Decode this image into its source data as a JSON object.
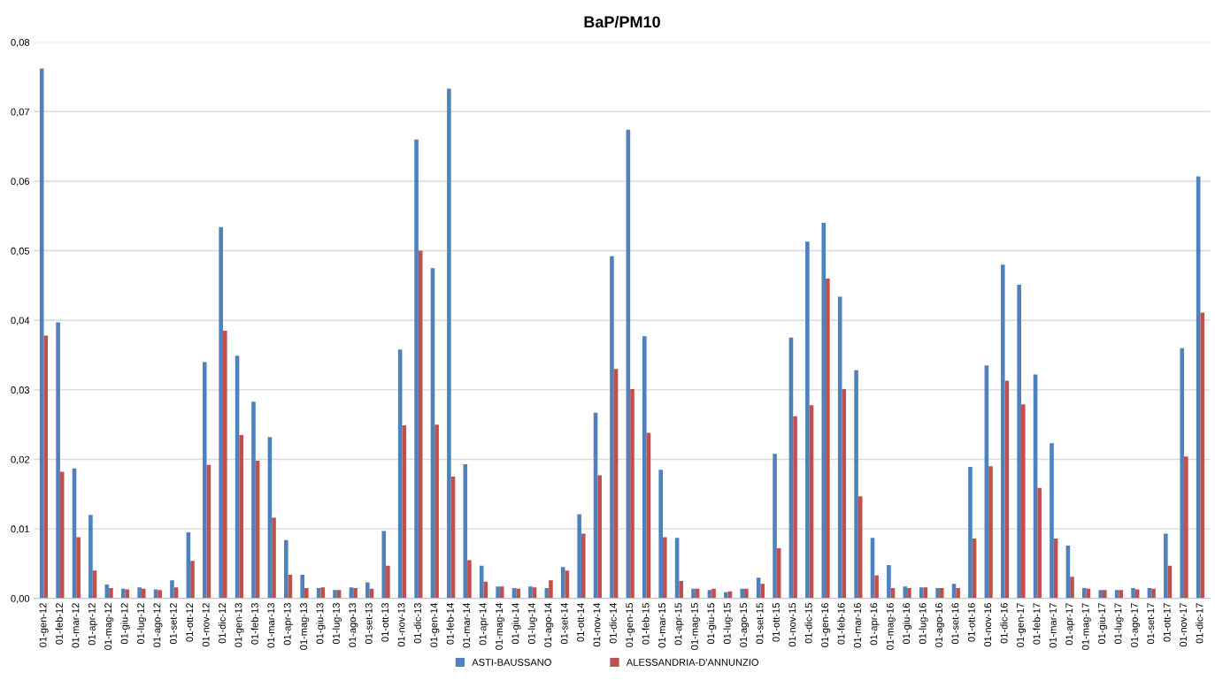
{
  "chart_data": {
    "type": "bar",
    "title": "BaP/PM10",
    "categories": [
      "01-gen-12",
      "01-feb-12",
      "01-mar-12",
      "01-apr-12",
      "01-mag-12",
      "01-giu-12",
      "01-lug-12",
      "01-ago-12",
      "01-set-12",
      "01-ott-12",
      "01-nov-12",
      "01-dic-12",
      "01-gen-13",
      "01-feb-13",
      "01-mar-13",
      "01-apr-13",
      "01-mag-13",
      "01-giu-13",
      "01-lug-13",
      "01-ago-13",
      "01-set-13",
      "01-ott-13",
      "01-nov-13",
      "01-dic-13",
      "01-gen-14",
      "01-feb-14",
      "01-mar-14",
      "01-apr-14",
      "01-mag-14",
      "01-giu-14",
      "01-lug-14",
      "01-ago-14",
      "01-set-14",
      "01-ott-14",
      "01-nov-14",
      "01-dic-14",
      "01-gen-15",
      "01-feb-15",
      "01-mar-15",
      "01-apr-15",
      "01-mag-15",
      "01-giu-15",
      "01-lug-15",
      "01-ago-15",
      "01-set-15",
      "01-ott-15",
      "01-nov-15",
      "01-dic-15",
      "01-gen-16",
      "01-feb-16",
      "01-mar-16",
      "01-apr-16",
      "01-mag-16",
      "01-giu-16",
      "01-lug-16",
      "01-ago-16",
      "01-set-16",
      "01-ott-16",
      "01-nov-16",
      "01-dic-16",
      "01-gen-17",
      "01-feb-17",
      "01-mar-17",
      "01-apr-17",
      "01-mag-17",
      "01-giu-17",
      "01-lug-17",
      "01-ago-17",
      "01-set-17",
      "01-ott-17",
      "01-nov-17",
      "01-dic-17"
    ],
    "series": [
      {
        "name": "ASTI-BAUSSANO",
        "color": "#4f81bd",
        "values": [
          0.0762,
          0.0397,
          0.0187,
          0.012,
          0.002,
          0.0014,
          0.0016,
          0.0013,
          0.0026,
          0.0095,
          0.034,
          0.0534,
          0.0349,
          0.0283,
          0.0232,
          0.0084,
          0.0034,
          0.0015,
          0.0012,
          0.0016,
          0.0023,
          0.0097,
          0.0358,
          0.066,
          0.0475,
          0.0733,
          0.0193,
          0.0047,
          0.0017,
          0.0015,
          0.0017,
          0.0015,
          0.0045,
          0.0121,
          0.0267,
          0.0492,
          0.0674,
          0.0377,
          0.0185,
          0.0087,
          0.0014,
          0.0012,
          0.0009,
          0.0014,
          0.003,
          0.0208,
          0.0375,
          0.0513,
          0.054,
          0.0434,
          0.0328,
          0.0087,
          0.0048,
          0.0017,
          0.0016,
          0.0015,
          0.0021,
          0.0189,
          0.0335,
          0.048,
          0.0451,
          0.0322,
          0.0223,
          0.0076,
          0.0015,
          0.0012,
          0.0012,
          0.0015,
          0.0015,
          0.0093,
          0.036,
          0.0607
        ]
      },
      {
        "name": "ALESSANDRIA-D'ANNUNZIO",
        "color": "#c0504d",
        "values": [
          0.0378,
          0.0182,
          0.0088,
          0.004,
          0.0015,
          0.0013,
          0.0014,
          0.0012,
          0.0016,
          0.0054,
          0.0192,
          0.0385,
          0.0235,
          0.0198,
          0.0116,
          0.0034,
          0.0015,
          0.0016,
          0.0012,
          0.0015,
          0.0014,
          0.0047,
          0.0249,
          0.05,
          0.025,
          0.0175,
          0.0055,
          0.0024,
          0.0017,
          0.0014,
          0.0016,
          0.0026,
          0.004,
          0.0093,
          0.0177,
          0.033,
          0.0301,
          0.0238,
          0.0088,
          0.0025,
          0.0014,
          0.0014,
          0.001,
          0.0014,
          0.0021,
          0.0072,
          0.0262,
          0.0278,
          0.046,
          0.0301,
          0.0147,
          0.0033,
          0.0015,
          0.0015,
          0.0016,
          0.0015,
          0.0015,
          0.0086,
          0.019,
          0.0313,
          0.0279,
          0.0159,
          0.0086,
          0.0031,
          0.0014,
          0.0012,
          0.0012,
          0.0013,
          0.0014,
          0.0047,
          0.0204,
          0.0411
        ]
      }
    ],
    "ylim": [
      0,
      0.08
    ],
    "yticks": [
      {
        "value": 0,
        "label": "0,00"
      },
      {
        "value": 0.01,
        "label": "0,01"
      },
      {
        "value": 0.02,
        "label": "0,02"
      },
      {
        "value": 0.03,
        "label": "0,03"
      },
      {
        "value": 0.04,
        "label": "0,04"
      },
      {
        "value": 0.05,
        "label": "0,05"
      },
      {
        "value": 0.06,
        "label": "0,06"
      },
      {
        "value": 0.07,
        "label": "0,07"
      },
      {
        "value": 0.08,
        "label": "0,08"
      }
    ],
    "grid": "y",
    "legend": "bottom"
  }
}
